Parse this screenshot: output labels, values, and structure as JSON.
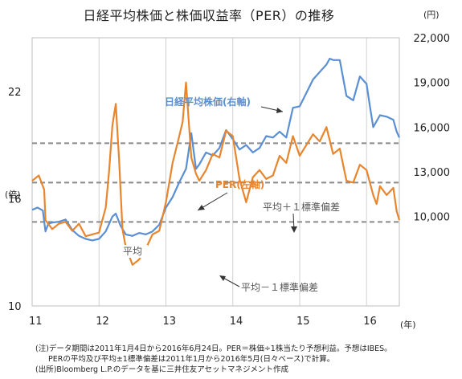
{
  "title": "日経平均株価と株価収益率（PER）の推移",
  "notes": {
    "line1": "(注)データ期間は2011年1月4日から2016年6月24日。PER＝株価÷1株当たり予想利益。予想はIBES。",
    "line2": "PERの平均及び平均±1標準偏差は2011年1月から2016年5月(日々ベース)で計算。",
    "source": "(出所)Bloomberg L.P.のデータを基に三井住友アセットマネジメント作成"
  },
  "chart_data": {
    "type": "line",
    "title": "日経平均株価と株価収益率（PER）の推移",
    "x_unit": "(年)",
    "x_ticks": [
      "11",
      "12",
      "13",
      "14",
      "15",
      "16"
    ],
    "x_range": [
      2011.0,
      2016.49
    ],
    "y_left": {
      "unit": "(倍)",
      "ticks": [
        10,
        16,
        22
      ],
      "range": [
        10,
        25
      ]
    },
    "y_right": {
      "unit": "(円)",
      "ticks": [
        "10,000",
        "13,000",
        "16,000",
        "19,000",
        "22,000"
      ],
      "tick_values": [
        10000,
        13000,
        16000,
        19000,
        22000
      ],
      "range": [
        4000,
        22000
      ]
    },
    "grid": "vertical year lines",
    "series": [
      {
        "name": "日経平均株価(右軸)",
        "axis": "right",
        "color": "#5b8fd3",
        "x": [
          2011.0,
          2011.08,
          2011.16,
          2011.2,
          2011.24,
          2011.3,
          2011.4,
          2011.5,
          2011.6,
          2011.7,
          2011.8,
          2011.9,
          2012.0,
          2012.1,
          2012.2,
          2012.25,
          2012.32,
          2012.4,
          2012.5,
          2012.6,
          2012.7,
          2012.8,
          2012.9,
          2013.0,
          2013.1,
          2013.2,
          2013.3,
          2013.38,
          2013.45,
          2013.5,
          2013.6,
          2013.7,
          2013.8,
          2013.9,
          2014.0,
          2014.1,
          2014.2,
          2014.3,
          2014.4,
          2014.5,
          2014.6,
          2014.7,
          2014.8,
          2014.9,
          2015.0,
          2015.1,
          2015.2,
          2015.3,
          2015.4,
          2015.45,
          2015.5,
          2015.6,
          2015.7,
          2015.8,
          2015.9,
          2016.0,
          2016.05,
          2016.1,
          2016.2,
          2016.3,
          2016.4,
          2016.45,
          2016.49
        ],
        "y": [
          10450,
          10600,
          10400,
          9000,
          9500,
          9600,
          9650,
          9800,
          9100,
          8700,
          8500,
          8400,
          8500,
          9000,
          10000,
          10200,
          9400,
          8800,
          8700,
          8900,
          8800,
          9000,
          9450,
          10600,
          11300,
          12300,
          13200,
          15600,
          13200,
          13500,
          14300,
          14100,
          14600,
          15800,
          15200,
          14500,
          14800,
          14300,
          14600,
          15400,
          15300,
          15700,
          15300,
          17300,
          17400,
          18300,
          19200,
          19700,
          20200,
          20600,
          20500,
          20500,
          18100,
          17800,
          19400,
          18900,
          17400,
          16000,
          16800,
          16700,
          16500,
          15700,
          15300
        ]
      },
      {
        "name": "PER(左軸)",
        "axis": "left",
        "color": "#e8852d",
        "x": [
          2011.0,
          2011.1,
          2011.18,
          2011.2,
          2011.3,
          2011.4,
          2011.5,
          2011.6,
          2011.7,
          2011.8,
          2011.9,
          2012.0,
          2012.05,
          2012.1,
          2012.15,
          2012.2,
          2012.25,
          2012.3,
          2012.35,
          2012.4,
          2012.5,
          2012.6,
          2012.7,
          2012.8,
          2012.9,
          2013.0,
          2013.1,
          2013.2,
          2013.25,
          2013.3,
          2013.38,
          2013.45,
          2013.5,
          2013.6,
          2013.7,
          2013.8,
          2013.9,
          2014.0,
          2014.1,
          2014.2,
          2014.3,
          2014.4,
          2014.5,
          2014.6,
          2014.7,
          2014.8,
          2014.9,
          2015.0,
          2015.1,
          2015.2,
          2015.3,
          2015.4,
          2015.5,
          2015.6,
          2015.7,
          2015.8,
          2015.9,
          2016.0,
          2016.1,
          2016.15,
          2016.2,
          2016.3,
          2016.4,
          2016.45,
          2016.49
        ],
        "y": [
          17.0,
          17.3,
          16.5,
          14.8,
          14.3,
          14.6,
          14.7,
          14.2,
          14.6,
          13.9,
          14.0,
          14.1,
          14.8,
          15.5,
          17.5,
          20.1,
          21.3,
          18.2,
          14.3,
          13.3,
          12.3,
          12.6,
          13.2,
          14.0,
          14.2,
          15.8,
          18.0,
          19.5,
          20.3,
          22.5,
          18.3,
          17.4,
          17.0,
          17.6,
          18.5,
          18.3,
          19.8,
          19.5,
          17.1,
          15.8,
          17.2,
          17.6,
          17.1,
          17.3,
          18.4,
          18.0,
          19.5,
          18.4,
          19.0,
          19.6,
          19.2,
          20.0,
          18.5,
          18.8,
          17.0,
          16.9,
          17.9,
          17.6,
          16.2,
          15.7,
          16.7,
          16.2,
          16.6,
          15.3,
          14.8
        ]
      }
    ],
    "reference_lines": [
      {
        "name": "平均＋１標準偏差",
        "axis": "left",
        "value": 19.1
      },
      {
        "name": "平均",
        "axis": "left",
        "value": 16.9
      },
      {
        "name": "平均－１標準偏差",
        "axis": "left",
        "value": 14.7
      }
    ],
    "annotations": [
      "日経平均株価(右軸)",
      "PER(左軸)",
      "平均＋１標準偏差",
      "平均",
      "平均－１標準偏差"
    ]
  }
}
